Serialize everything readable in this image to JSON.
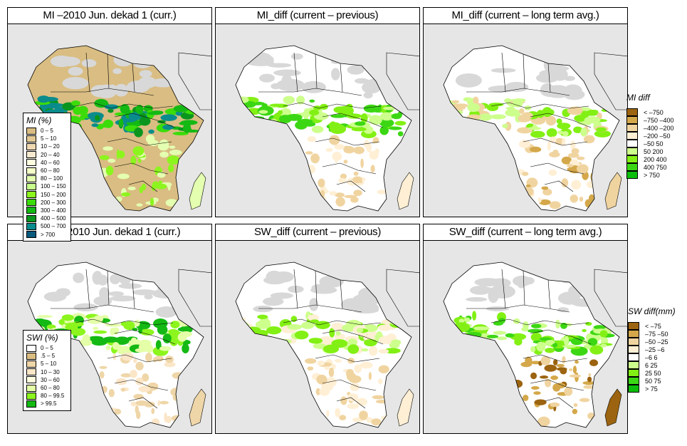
{
  "panels": [
    {
      "id": "mi-current",
      "title": "MI –2010 Jun. dekad 1 (curr.)",
      "palette": "mi"
    },
    {
      "id": "mi-diff-previous",
      "title": "MI_diff (current – previous)",
      "palette": "midiff_prev"
    },
    {
      "id": "mi-diff-lta",
      "title": "MI_diff (current – long term avg.)",
      "palette": "midiff_lta"
    },
    {
      "id": "swi-current",
      "title": "SWI –2010 Jun. dekad 1 (curr.)",
      "palette": "swi"
    },
    {
      "id": "sw-diff-previous",
      "title": "SW_diff (current – previous)",
      "palette": "swdiff_prev"
    },
    {
      "id": "sw-diff-lta",
      "title": "SW_diff (current – long term avg.)",
      "palette": "swdiff_lta"
    }
  ],
  "legends": {
    "mi": {
      "title": "MI (%)",
      "items": [
        {
          "label": "0 – 5",
          "color": "#d9bd82"
        },
        {
          "label": "5 – 10",
          "color": "#e3c995"
        },
        {
          "label": "10 – 20",
          "color": "#efd9b2"
        },
        {
          "label": "20 – 40",
          "color": "#f8ead0"
        },
        {
          "label": "40 – 60",
          "color": "#ffffe0"
        },
        {
          "label": "60 – 80",
          "color": "#f5ffc8"
        },
        {
          "label": "80 – 100",
          "color": "#e4ffb0"
        },
        {
          "label": "100 – 150",
          "color": "#c8ff8c"
        },
        {
          "label": "150 – 200",
          "color": "#8cf51e"
        },
        {
          "label": "200 – 300",
          "color": "#3cdc0a"
        },
        {
          "label": "300 – 400",
          "color": "#14b914"
        },
        {
          "label": "400 – 500",
          "color": "#0a961e"
        },
        {
          "label": "500 – 700",
          "color": "#0a8c8c"
        },
        {
          "label": "> 700",
          "color": "#0a5a7d"
        }
      ]
    },
    "swi": {
      "title": "SWI (%)",
      "items": [
        {
          "label": "0 – 5",
          "color": "#ffffff"
        },
        {
          "label": ".5 – 5",
          "color": "#d9bd82"
        },
        {
          "label": "5 – 10",
          "color": "#efd6a8"
        },
        {
          "label": "10 – 30",
          "color": "#fbe6c8"
        },
        {
          "label": "30 – 60",
          "color": "#ffffe0"
        },
        {
          "label": "60 – 80",
          "color": "#e4ffa8"
        },
        {
          "label": "80 – 99.5",
          "color": "#8cf51e"
        },
        {
          "label": "> 99.5",
          "color": "#14b914"
        }
      ]
    },
    "mi_diff": {
      "title": "MI diff",
      "items": [
        {
          "label": "< –750",
          "color": "#9c6410"
        },
        {
          "label": "–750 –400",
          "color": "#d4a84a"
        },
        {
          "label": "–400 –200",
          "color": "#f0d4a0"
        },
        {
          "label": "–200  –50",
          "color": "#ffefd4"
        },
        {
          "label": "–50  50",
          "color": "#ffffff"
        },
        {
          "label": "50  200",
          "color": "#cdff8c"
        },
        {
          "label": "200  400",
          "color": "#82f014"
        },
        {
          "label": "400  750",
          "color": "#3cd714"
        },
        {
          "label": "> 750",
          "color": "#0abe0a"
        }
      ]
    },
    "sw_diff": {
      "title": "SW diff(mm)",
      "items": [
        {
          "label": "< –75",
          "color": "#9c6410"
        },
        {
          "label": "–75 –50",
          "color": "#d4a84a"
        },
        {
          "label": "–50 –25",
          "color": "#f0d4a0"
        },
        {
          "label": "–25  –6",
          "color": "#ffefd4"
        },
        {
          "label": "–6  6",
          "color": "#ffffff"
        },
        {
          "label": "6  25",
          "color": "#cdff8c"
        },
        {
          "label": "25  50",
          "color": "#82f014"
        },
        {
          "label": "50  75",
          "color": "#3cd714"
        },
        {
          "label": "> 75",
          "color": "#0abe0a"
        }
      ]
    }
  },
  "colors": {
    "ocean": "#e6e6e6",
    "no_data_desert": "#d8d8d8",
    "border": "#000000"
  }
}
